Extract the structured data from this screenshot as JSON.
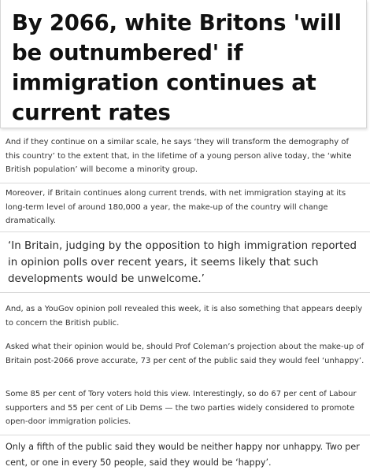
{
  "article": {
    "headline": "By 2066, white Britons 'will be outnumbered' if immigration continues at current rates",
    "paragraphs": [
      "And if they continue on a similar scale, he says ‘they will transform the demography of this country’ to the extent that, in the lifetime of a young person alive today, the ‘white British population’ will become a minority group.",
      "Moreover, if Britain continues along current trends, with net immigration staying at its long-term level of around 180,000 a year, the make-up of the country will change dramatically.",
      "‘In Britain, judging by the opposition to high immigration reported in opinion polls over recent years, it seems likely that such developments would be unwelcome.’",
      "And, as a YouGov opinion poll revealed this week, it is also something that appears deeply to concern the British public.",
      "Asked what their opinion would be, should Prof Coleman’s projection about the make-up of Britain post-2066 prove accurate, 73 per cent of the public said they would feel ‘unhappy’.",
      "Some 85 per cent of Tory voters hold this view. Interestingly, so do 67 per cent of Labour supporters and 55 per cent of Lib Dems — the two parties widely considered to promote open-door immigration policies.",
      "Only a fifth of the public said they would be neither happy nor unhappy. Two per cent, or one in every 50 people, said they would be ‘happy’."
    ]
  }
}
